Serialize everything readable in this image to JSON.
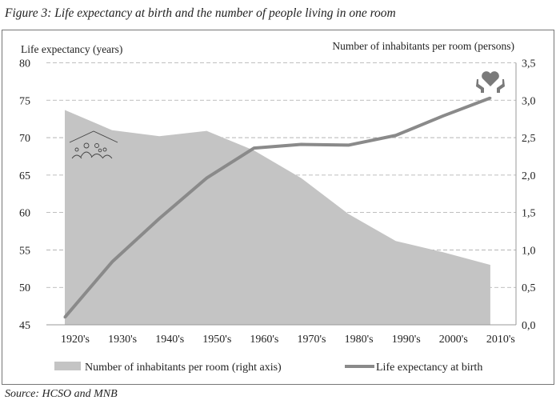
{
  "title": "Figure 3: Life expectancy at birth and the number of people living in one room",
  "source": "Source: HCSO and MNB",
  "chart_data": {
    "type": "area+line",
    "categories": [
      "1920's",
      "1930's",
      "1940's",
      "1950's",
      "1960's",
      "1970's",
      "1980's",
      "1990's",
      "2000's",
      "2010's"
    ],
    "left_axis": {
      "label": "Life expectancy (years)",
      "range": [
        45,
        80
      ],
      "ticks": [
        "45",
        "50",
        "55",
        "60",
        "65",
        "70",
        "75",
        "80"
      ]
    },
    "right_axis": {
      "label": "Number of inhabitants per room (persons)",
      "range": [
        0,
        3.5
      ],
      "ticks": [
        "0,0",
        "0,5",
        "1,0",
        "1,5",
        "2,0",
        "2,5",
        "3,0",
        "3,5"
      ]
    },
    "series": [
      {
        "name": "Number of inhabitants per room (right axis)",
        "type": "area",
        "axis": "right",
        "color": "#c4c4c4",
        "values": [
          2.87,
          2.6,
          2.52,
          2.59,
          2.33,
          1.96,
          1.48,
          1.12,
          0.97,
          0.8
        ]
      },
      {
        "name": "Life expectancy at birth",
        "type": "line",
        "axis": "left",
        "color": "#8a8a8a",
        "values": [
          46.0,
          53.4,
          59.2,
          64.6,
          68.6,
          69.1,
          69.0,
          70.3,
          72.9,
          75.3
        ]
      }
    ],
    "grid": true,
    "legend": "bottom",
    "icons": [
      "family-house-icon",
      "heart-hands-icon"
    ]
  }
}
